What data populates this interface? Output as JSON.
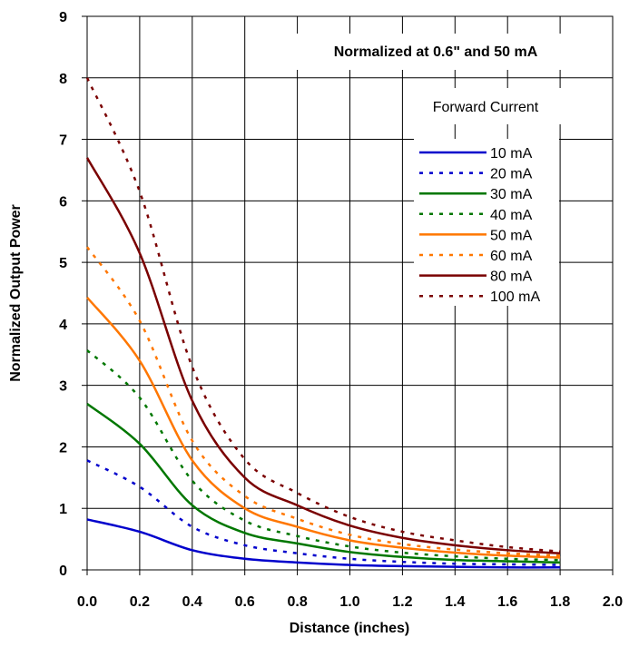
{
  "chart_data": {
    "type": "line",
    "xlabel": "Distance (inches)",
    "ylabel": "Normalized Output Power",
    "xlim": [
      0,
      2
    ],
    "ylim": [
      0,
      9
    ],
    "xticks": [
      "0.0",
      "0.2",
      "0.4",
      "0.6",
      "0.8",
      "1.0",
      "1.2",
      "1.4",
      "1.6",
      "1.8",
      "2.0"
    ],
    "yticks": [
      "0",
      "1",
      "2",
      "3",
      "4",
      "5",
      "6",
      "7",
      "8",
      "9"
    ],
    "grid": true,
    "annotation": "Normalized at 0.6\" and 50 mA",
    "legend_title": "Forward Current",
    "legend_position": "top-right",
    "x": [
      0.0,
      0.2,
      0.4,
      0.6,
      0.8,
      1.0,
      1.2,
      1.4,
      1.6,
      1.8
    ],
    "series": [
      {
        "name": "10 mA",
        "color": "#0000cc",
        "dash": "solid",
        "values": [
          0.82,
          0.62,
          0.32,
          0.18,
          0.12,
          0.08,
          0.06,
          0.05,
          0.04,
          0.04
        ]
      },
      {
        "name": "20 mA",
        "color": "#0000cc",
        "dash": "dashed",
        "values": [
          1.78,
          1.35,
          0.7,
          0.4,
          0.27,
          0.18,
          0.13,
          0.1,
          0.09,
          0.08
        ]
      },
      {
        "name": "30 mA",
        "color": "#007700",
        "dash": "solid",
        "values": [
          2.7,
          2.05,
          1.05,
          0.6,
          0.43,
          0.29,
          0.21,
          0.16,
          0.14,
          0.12
        ]
      },
      {
        "name": "40 mA",
        "color": "#007700",
        "dash": "dashed",
        "values": [
          3.57,
          2.8,
          1.45,
          0.8,
          0.55,
          0.38,
          0.28,
          0.22,
          0.18,
          0.16
        ]
      },
      {
        "name": "50 mA",
        "color": "#ff7700",
        "dash": "solid",
        "values": [
          4.43,
          3.4,
          1.78,
          1.0,
          0.7,
          0.48,
          0.36,
          0.28,
          0.23,
          0.2
        ]
      },
      {
        "name": "60 mA",
        "color": "#ff7700",
        "dash": "dashed",
        "values": [
          5.25,
          4.05,
          2.1,
          1.2,
          0.83,
          0.57,
          0.42,
          0.33,
          0.27,
          0.23
        ]
      },
      {
        "name": "80 mA",
        "color": "#7a0000",
        "dash": "solid",
        "values": [
          6.7,
          5.15,
          2.75,
          1.5,
          1.05,
          0.72,
          0.52,
          0.4,
          0.32,
          0.27
        ]
      },
      {
        "name": "100 mA",
        "color": "#7a0000",
        "dash": "dashed",
        "values": [
          8.0,
          6.15,
          3.3,
          1.8,
          1.25,
          0.86,
          0.62,
          0.48,
          0.37,
          0.3
        ]
      }
    ]
  }
}
